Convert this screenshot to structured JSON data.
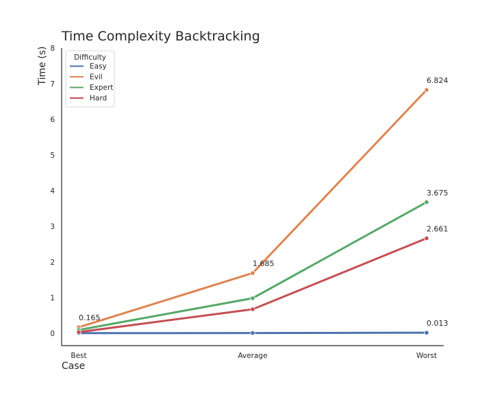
{
  "chart_data": {
    "type": "line",
    "title": "Time Complexity Backtracking",
    "xlabel": "Case",
    "ylabel": "Time (s)",
    "categories": [
      "Best",
      "Average",
      "Worst"
    ],
    "ylim": [
      -0.35,
      8
    ],
    "yticks": [
      0,
      1,
      2,
      3,
      4,
      5,
      6,
      7,
      8
    ],
    "grid": false,
    "legend": {
      "title": "Difficulty",
      "placement": "top-left"
    },
    "series": [
      {
        "name": "Easy",
        "color": "#4c72b0",
        "values": [
          0.0,
          0.004,
          0.013
        ]
      },
      {
        "name": "Evil",
        "color": "#dd8452",
        "values": [
          0.165,
          1.685,
          6.824
        ]
      },
      {
        "name": "Expert",
        "color": "#55a868",
        "values": [
          0.09,
          0.98,
          3.675
        ]
      },
      {
        "name": "Hard",
        "color": "#c44e52",
        "values": [
          0.03,
          0.67,
          2.661
        ]
      }
    ],
    "annotations": [
      {
        "text": "0.165",
        "series": "Evil",
        "index": 0
      },
      {
        "text": "1.685",
        "series": "Evil",
        "index": 1
      },
      {
        "text": "6.824",
        "series": "Evil",
        "index": 2
      },
      {
        "text": "3.675",
        "series": "Expert",
        "index": 2
      },
      {
        "text": "2.661",
        "series": "Hard",
        "index": 2
      },
      {
        "text": "0.013",
        "series": "Easy",
        "index": 2
      }
    ]
  }
}
